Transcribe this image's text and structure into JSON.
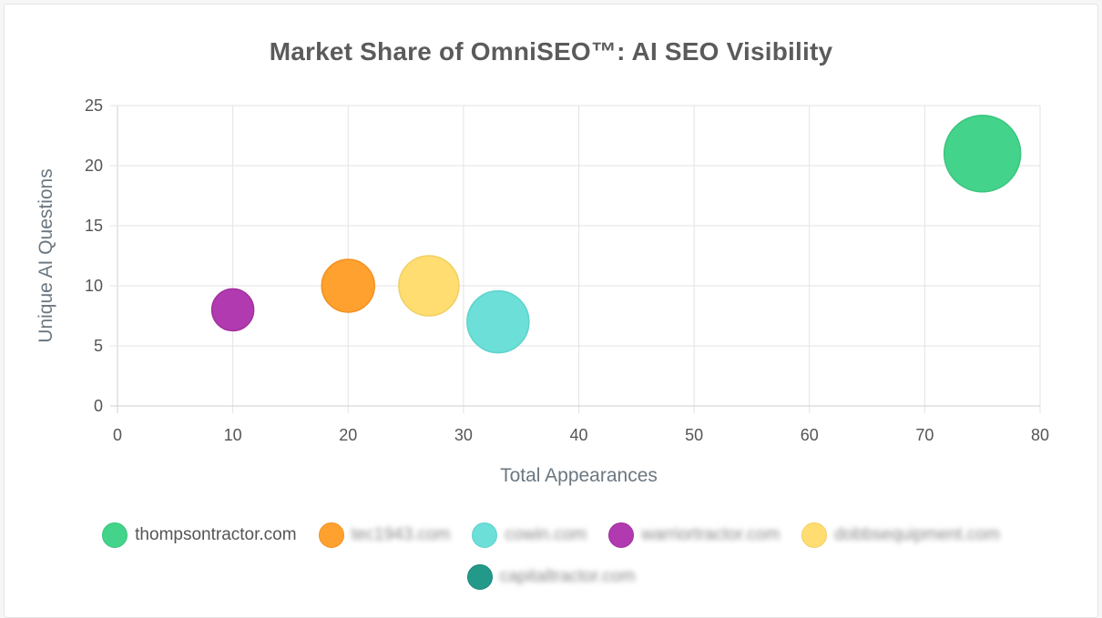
{
  "chart_data": {
    "type": "scatter",
    "title": "Market Share of OmniSEO™: AI SEO Visibility",
    "xlabel": "Total Appearances",
    "ylabel": "Unique AI Questions",
    "xlim": [
      0,
      80
    ],
    "ylim": [
      0,
      25
    ],
    "x_ticks": [
      0,
      10,
      20,
      30,
      40,
      50,
      60,
      70,
      80
    ],
    "y_ticks": [
      0,
      5,
      10,
      15,
      20,
      25
    ],
    "grid": true,
    "legend_position": "bottom",
    "series": [
      {
        "name": "thompsontractor.com",
        "x": 75,
        "y": 21,
        "r": 42,
        "color": "#43d38a",
        "border": "#3cc47f",
        "blurred": false
      },
      {
        "name": "tec1943.com",
        "x": 20,
        "y": 10,
        "r": 29,
        "color": "#ffa12e",
        "border": "#f39022",
        "blurred": true
      },
      {
        "name": "cowin.com",
        "x": 33,
        "y": 7,
        "r": 34,
        "color": "#6bdfd8",
        "border": "#5fd2cb",
        "blurred": true
      },
      {
        "name": "warriortractor.com",
        "x": 10,
        "y": 8,
        "r": 23,
        "color": "#b13ab0",
        "border": "#a2319f",
        "blurred": true
      },
      {
        "name": "dobbsequipment.com",
        "x": 27,
        "y": 10,
        "r": 33,
        "color": "#ffdd70",
        "border": "#f1cf63",
        "blurred": true
      },
      {
        "name": "capitaltractor.com",
        "x": null,
        "y": null,
        "r": 0,
        "color": "#23998a",
        "border": "#1e8a7c",
        "blurred": true
      }
    ]
  }
}
